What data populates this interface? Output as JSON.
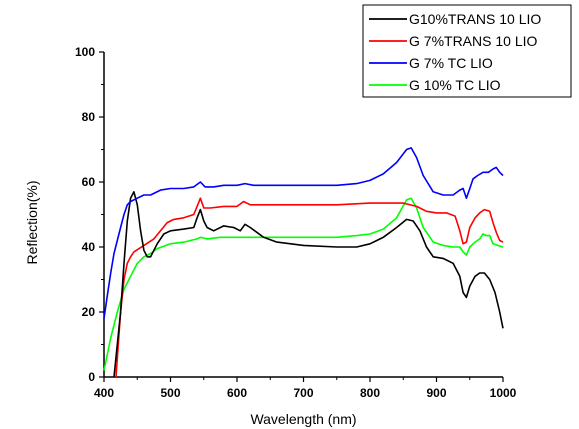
{
  "chart_data": {
    "type": "line",
    "title": "",
    "xlabel": "Wavelength (nm)",
    "ylabel": "Reflection(%)",
    "xlim": [
      400,
      1000
    ],
    "ylim": [
      0,
      100
    ],
    "xticks": [
      400,
      500,
      600,
      700,
      800,
      900,
      1000
    ],
    "yticks": [
      0,
      20,
      40,
      60,
      80,
      100
    ],
    "grid": false,
    "legend_position": "top-right",
    "series": [
      {
        "name": "G10%TRANS 10 LIO",
        "color": "#000000",
        "points": [
          [
            415,
            0
          ],
          [
            425,
            20
          ],
          [
            430,
            35
          ],
          [
            435,
            48
          ],
          [
            440,
            55
          ],
          [
            445,
            57
          ],
          [
            450,
            53
          ],
          [
            455,
            45
          ],
          [
            460,
            39
          ],
          [
            465,
            37
          ],
          [
            470,
            37
          ],
          [
            480,
            41
          ],
          [
            490,
            44
          ],
          [
            500,
            45
          ],
          [
            520,
            45.5
          ],
          [
            535,
            46
          ],
          [
            540,
            49
          ],
          [
            545,
            51.5
          ],
          [
            550,
            48
          ],
          [
            555,
            46
          ],
          [
            565,
            45
          ],
          [
            580,
            46.5
          ],
          [
            595,
            46
          ],
          [
            605,
            45
          ],
          [
            612,
            47
          ],
          [
            620,
            46
          ],
          [
            640,
            43
          ],
          [
            660,
            41.5
          ],
          [
            700,
            40.5
          ],
          [
            750,
            40
          ],
          [
            780,
            40
          ],
          [
            800,
            41
          ],
          [
            820,
            43
          ],
          [
            840,
            46
          ],
          [
            855,
            48.5
          ],
          [
            865,
            48
          ],
          [
            875,
            45
          ],
          [
            885,
            40
          ],
          [
            895,
            37
          ],
          [
            910,
            36.5
          ],
          [
            925,
            35
          ],
          [
            935,
            31
          ],
          [
            940,
            26
          ],
          [
            945,
            24.5
          ],
          [
            950,
            28
          ],
          [
            958,
            31
          ],
          [
            965,
            32
          ],
          [
            972,
            32
          ],
          [
            980,
            30
          ],
          [
            988,
            26
          ],
          [
            995,
            20
          ],
          [
            1000,
            15
          ]
        ]
      },
      {
        "name": "G 7%TRANS 10 LIO",
        "color": "#ff0000",
        "points": [
          [
            418,
            0
          ],
          [
            425,
            20
          ],
          [
            430,
            30
          ],
          [
            435,
            35
          ],
          [
            440,
            37
          ],
          [
            445,
            38.5
          ],
          [
            460,
            40.5
          ],
          [
            475,
            42.5
          ],
          [
            485,
            45
          ],
          [
            495,
            47.5
          ],
          [
            505,
            48.5
          ],
          [
            520,
            49
          ],
          [
            535,
            50
          ],
          [
            540,
            52.5
          ],
          [
            545,
            55
          ],
          [
            550,
            52
          ],
          [
            560,
            52
          ],
          [
            580,
            52.5
          ],
          [
            600,
            52.5
          ],
          [
            610,
            54
          ],
          [
            620,
            53
          ],
          [
            660,
            53
          ],
          [
            700,
            53
          ],
          [
            750,
            53
          ],
          [
            800,
            53.5
          ],
          [
            850,
            53.5
          ],
          [
            870,
            52.5
          ],
          [
            885,
            51
          ],
          [
            900,
            50.5
          ],
          [
            915,
            50.5
          ],
          [
            928,
            49.5
          ],
          [
            935,
            45
          ],
          [
            940,
            41
          ],
          [
            945,
            41.5
          ],
          [
            950,
            46
          ],
          [
            958,
            49
          ],
          [
            965,
            50.5
          ],
          [
            972,
            51.5
          ],
          [
            980,
            51
          ],
          [
            985,
            47.5
          ],
          [
            990,
            44.5
          ],
          [
            995,
            42
          ],
          [
            1000,
            41.5
          ]
        ]
      },
      {
        "name": "G 7% TC LIO",
        "color": "#0000ff",
        "points": [
          [
            400,
            18
          ],
          [
            405,
            25
          ],
          [
            410,
            32
          ],
          [
            415,
            38
          ],
          [
            420,
            42
          ],
          [
            425,
            46
          ],
          [
            430,
            50
          ],
          [
            435,
            53
          ],
          [
            440,
            54
          ],
          [
            450,
            55
          ],
          [
            460,
            56
          ],
          [
            470,
            56
          ],
          [
            485,
            57.5
          ],
          [
            500,
            58
          ],
          [
            520,
            58
          ],
          [
            535,
            58.5
          ],
          [
            545,
            60
          ],
          [
            552,
            58.5
          ],
          [
            565,
            58.5
          ],
          [
            580,
            59
          ],
          [
            600,
            59
          ],
          [
            612,
            59.5
          ],
          [
            625,
            59
          ],
          [
            650,
            59
          ],
          [
            700,
            59
          ],
          [
            750,
            59
          ],
          [
            780,
            59.5
          ],
          [
            800,
            60.5
          ],
          [
            820,
            62.5
          ],
          [
            840,
            66
          ],
          [
            855,
            70
          ],
          [
            862,
            70.5
          ],
          [
            870,
            67.5
          ],
          [
            880,
            62
          ],
          [
            895,
            57
          ],
          [
            910,
            56
          ],
          [
            925,
            56
          ],
          [
            935,
            57.5
          ],
          [
            940,
            58
          ],
          [
            945,
            55
          ],
          [
            950,
            58
          ],
          [
            955,
            61
          ],
          [
            962,
            62
          ],
          [
            970,
            63
          ],
          [
            978,
            63
          ],
          [
            985,
            64
          ],
          [
            990,
            64.5
          ],
          [
            995,
            63
          ],
          [
            1000,
            62
          ]
        ]
      },
      {
        "name": "G 10% TC LIO",
        "color": "#00ff00",
        "points": [
          [
            400,
            2
          ],
          [
            410,
            12
          ],
          [
            420,
            20
          ],
          [
            430,
            27
          ],
          [
            440,
            31
          ],
          [
            450,
            35
          ],
          [
            460,
            37
          ],
          [
            470,
            38
          ],
          [
            480,
            39.5
          ],
          [
            500,
            41
          ],
          [
            520,
            41.5
          ],
          [
            540,
            42.5
          ],
          [
            545,
            43
          ],
          [
            555,
            42.5
          ],
          [
            575,
            43
          ],
          [
            600,
            43
          ],
          [
            625,
            43
          ],
          [
            650,
            43
          ],
          [
            700,
            43
          ],
          [
            750,
            43
          ],
          [
            780,
            43.5
          ],
          [
            800,
            44
          ],
          [
            820,
            45.5
          ],
          [
            840,
            49
          ],
          [
            855,
            54.5
          ],
          [
            862,
            55
          ],
          [
            870,
            52
          ],
          [
            880,
            46
          ],
          [
            895,
            41.5
          ],
          [
            910,
            40.5
          ],
          [
            925,
            40
          ],
          [
            935,
            40
          ],
          [
            940,
            38.5
          ],
          [
            945,
            37.5
          ],
          [
            950,
            40
          ],
          [
            958,
            41.5
          ],
          [
            965,
            42.5
          ],
          [
            970,
            44
          ],
          [
            975,
            43.5
          ],
          [
            980,
            43.5
          ],
          [
            985,
            41
          ],
          [
            992,
            40.5
          ],
          [
            1000,
            40
          ]
        ]
      }
    ]
  }
}
